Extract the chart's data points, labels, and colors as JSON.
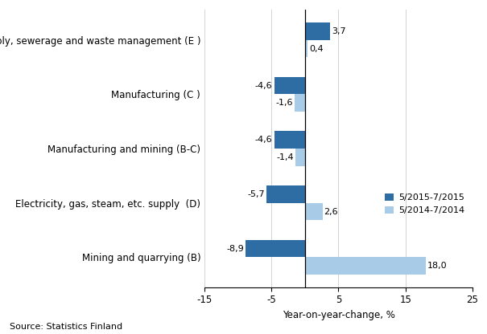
{
  "categories": [
    "Mining and quarrying (B)",
    "Electricity, gas, steam, etc. supply  (D)",
    "Manufacturing and mining (B-C)",
    "Manufacturing (C )",
    "Water supply, sewerage and waste management (E )"
  ],
  "series_2015": [
    -8.9,
    -5.7,
    -4.6,
    -4.6,
    3.7
  ],
  "series_2014": [
    18.0,
    2.6,
    -1.4,
    -1.6,
    0.4
  ],
  "color_2015": "#2E6DA4",
  "color_2014": "#A8CCE8",
  "legend_2015": "5/2015-7/2015",
  "legend_2014": "5/2014-7/2014",
  "xlabel": "Year-on-year-change, %",
  "xlim": [
    -15,
    25
  ],
  "xticks": [
    -15,
    -5,
    5,
    15,
    25
  ],
  "xtick_labels": [
    "-15",
    "-5",
    "5",
    "15",
    "25"
  ],
  "gridlines": [
    -15,
    -5,
    5,
    15,
    25
  ],
  "source": "Source: Statistics Finland",
  "bar_height": 0.32,
  "label_fontsize": 8.0,
  "axis_fontsize": 8.5,
  "ytick_fontsize": 8.5
}
